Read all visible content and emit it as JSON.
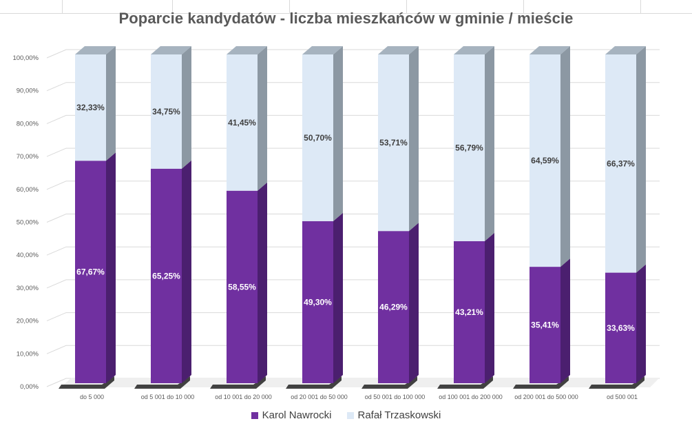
{
  "chart_data": {
    "type": "bar",
    "stacked": true,
    "percent": true,
    "three_d": true,
    "title": "Poparcie kandydatów - liczba mieszkańców w gminie / mieście",
    "categories": [
      "do 5 000",
      "od 5 001 do 10 000",
      "od 10 001 do 20 000",
      "od 20 001 do 50 000",
      "od 50 001 do 100 000",
      "od 100 001 do 200 000",
      "od 200 001 do 500 000",
      "od 500 001"
    ],
    "series": [
      {
        "name": "Karol Nawrocki",
        "values": [
          67.67,
          65.25,
          58.55,
          49.3,
          46.29,
          43.21,
          35.41,
          33.63
        ],
        "labels": [
          "67,67%",
          "65,25%",
          "58,55%",
          "49,30%",
          "46,29%",
          "43,21%",
          "35,41%",
          "33,63%"
        ]
      },
      {
        "name": "Rafał Trzaskowski",
        "values": [
          32.33,
          34.75,
          41.45,
          50.7,
          53.71,
          56.79,
          64.59,
          66.37
        ],
        "labels": [
          "32,33%",
          "34,75%",
          "41,45%",
          "50,70%",
          "53,71%",
          "56,79%",
          "64,59%",
          "66,37%"
        ]
      }
    ],
    "ylim": [
      0,
      100
    ],
    "yticks": [
      "0,00%",
      "10,00%",
      "20,00%",
      "30,00%",
      "40,00%",
      "50,00%",
      "60,00%",
      "70,00%",
      "80,00%",
      "90,00%",
      "100,00%"
    ],
    "grid": true,
    "legend_position": "bottom",
    "colors": {
      "nawrocki_front": "#7030a0",
      "nawrocki_side": "#4b1f6f",
      "nawrocki_top": "#5a2684",
      "trzaskowski_front": "#dde9f6",
      "trzaskowski_side": "#8c98a3",
      "trzaskowski_top": "#a6b3bf",
      "grid": "#d9d9d9",
      "tick_text": "#595959",
      "floor_shadow": "#222222"
    }
  }
}
